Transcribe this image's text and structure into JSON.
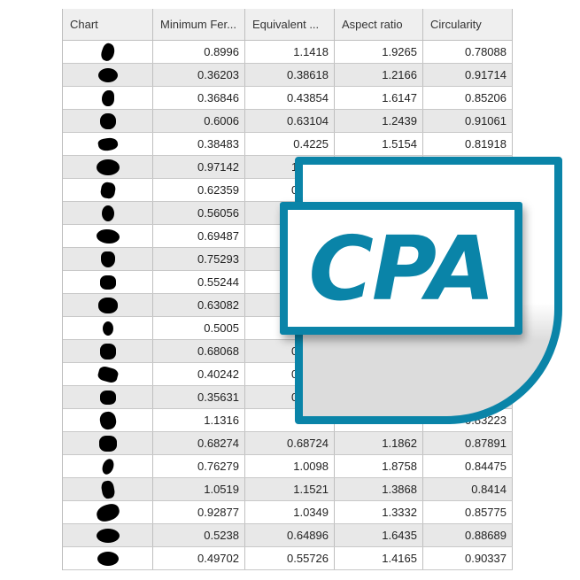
{
  "table": {
    "columns": [
      "Chart",
      "Minimum Fer...",
      "Equivalent ...",
      "Aspect ratio",
      "Circularity"
    ],
    "chart_icon": "particle-silhouette",
    "rows": [
      [
        "0.8996",
        "1.1418",
        "1.9265",
        "0.78088"
      ],
      [
        "0.36203",
        "0.38618",
        "1.2166",
        "0.91714"
      ],
      [
        "0.36846",
        "0.43854",
        "1.6147",
        "0.85206"
      ],
      [
        "0.6006",
        "0.63104",
        "1.2439",
        "0.91061"
      ],
      [
        "0.38483",
        "0.4225",
        "1.5154",
        "0.81918"
      ],
      [
        "0.97142",
        "1",
        "",
        ""
      ],
      [
        "0.62359",
        "0.6",
        "",
        ""
      ],
      [
        "0.56056",
        "",
        "",
        ""
      ],
      [
        "0.69487",
        "",
        "",
        ""
      ],
      [
        "0.75293",
        "",
        "",
        ""
      ],
      [
        "0.55244",
        "",
        "",
        ""
      ],
      [
        "0.63082",
        "",
        "",
        ""
      ],
      [
        "0.5005",
        "",
        "",
        ""
      ],
      [
        "0.68068",
        "0.7",
        "",
        ""
      ],
      [
        "0.40242",
        "0.4",
        "",
        ""
      ],
      [
        "0.35631",
        "0.3",
        "",
        ""
      ],
      [
        "1.1316",
        "",
        "",
        "0.83223"
      ],
      [
        "0.68274",
        "0.68724",
        "1.1862",
        "0.87891"
      ],
      [
        "0.76279",
        "1.0098",
        "1.8758",
        "0.84475"
      ],
      [
        "1.0519",
        "1.1521",
        "1.3868",
        "0.8414"
      ],
      [
        "0.92877",
        "1.0349",
        "1.3332",
        "0.85775"
      ],
      [
        "0.5238",
        "0.64896",
        "1.6435",
        "0.88689"
      ],
      [
        "0.49702",
        "0.55726",
        "1.4165",
        "0.90337"
      ]
    ]
  },
  "logo": {
    "text": "CPA",
    "color": "#0a84a8"
  }
}
